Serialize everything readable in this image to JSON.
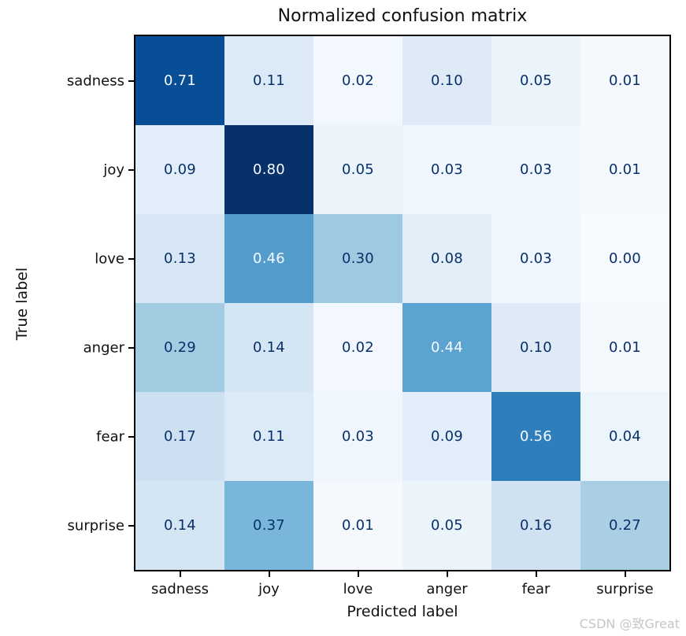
{
  "chart_data": {
    "type": "heatmap",
    "title": "Normalized confusion matrix",
    "xlabel": "Predicted label",
    "ylabel": "True label",
    "categories": [
      "sadness",
      "joy",
      "love",
      "anger",
      "fear",
      "surprise"
    ],
    "matrix": [
      [
        0.71,
        0.11,
        0.02,
        0.1,
        0.05,
        0.01
      ],
      [
        0.09,
        0.8,
        0.05,
        0.03,
        0.03,
        0.01
      ],
      [
        0.13,
        0.46,
        0.3,
        0.08,
        0.03,
        0.0
      ],
      [
        0.29,
        0.14,
        0.02,
        0.44,
        0.1,
        0.01
      ],
      [
        0.17,
        0.11,
        0.03,
        0.09,
        0.56,
        0.04
      ],
      [
        0.14,
        0.37,
        0.01,
        0.05,
        0.16,
        0.27
      ]
    ],
    "value_decimals": 2,
    "colormap": {
      "name": "Blues",
      "vmin": 0.0,
      "vmax": 0.8,
      "stops": [
        "#f7fbff",
        "#deebf7",
        "#c6dbef",
        "#9ecae1",
        "#6baed6",
        "#4292c6",
        "#2171b5",
        "#08519c",
        "#08306b"
      ]
    },
    "text_threshold": 0.4,
    "text_color_dark": "#08306b",
    "text_color_light": "#f7fbff",
    "grid": false,
    "legend": "none",
    "colorbar": false
  },
  "watermark": "CSDN @致Great"
}
